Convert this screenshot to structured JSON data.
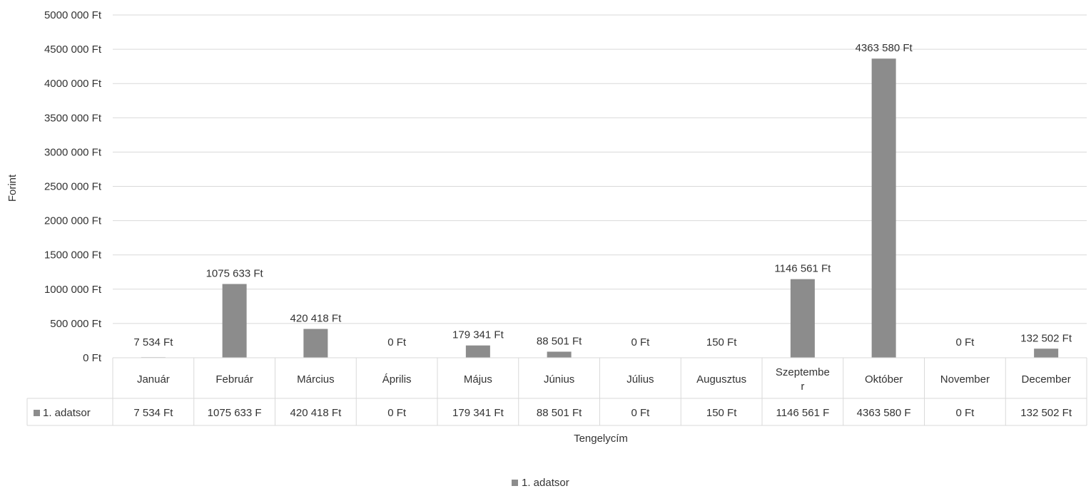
{
  "chart_data": {
    "type": "bar",
    "title": "",
    "xlabel": "Tengelycím",
    "ylabel": "Forint",
    "ylim": [
      0,
      5000000
    ],
    "yticks": [
      "0 Ft",
      "500 000 Ft",
      "1000 000 Ft",
      "1500 000 Ft",
      "2000 000 Ft",
      "2500 000 Ft",
      "3000 000 Ft",
      "3500 000 Ft",
      "4000 000 Ft",
      "4500 000 Ft",
      "5000 000 Ft"
    ],
    "categories": [
      "Január",
      "Február",
      "Március",
      "Április",
      "Május",
      "Június",
      "Július",
      "Augusztus",
      "Szeptember",
      "Október",
      "November",
      "December"
    ],
    "series": [
      {
        "name": "1. adatsor",
        "values": [
          7534,
          1075633,
          420418,
          0,
          179341,
          88501,
          0,
          150,
          1146561,
          4363580,
          0,
          132502
        ],
        "labels": [
          "7 534 Ft",
          "1075 633 Ft",
          "420 418 Ft",
          "0 Ft",
          "179 341 Ft",
          "88 501 Ft",
          "0 Ft",
          "150 Ft",
          "1146 561 Ft",
          "4363 580 Ft",
          "0 Ft",
          "132 502 Ft"
        ],
        "table_labels": [
          "7 534 Ft",
          "1075 633 F",
          "420 418 Ft",
          "0 Ft",
          "179 341 Ft",
          "88 501 Ft",
          "0 Ft",
          "150 Ft",
          "1146 561 F",
          "4363 580 F",
          "0 Ft",
          "132 502 Ft"
        ],
        "color": "#8c8c8c"
      }
    ],
    "data_table": true,
    "grid": true,
    "legend": "bottom-center",
    "legend_label": "1. adatsor"
  }
}
